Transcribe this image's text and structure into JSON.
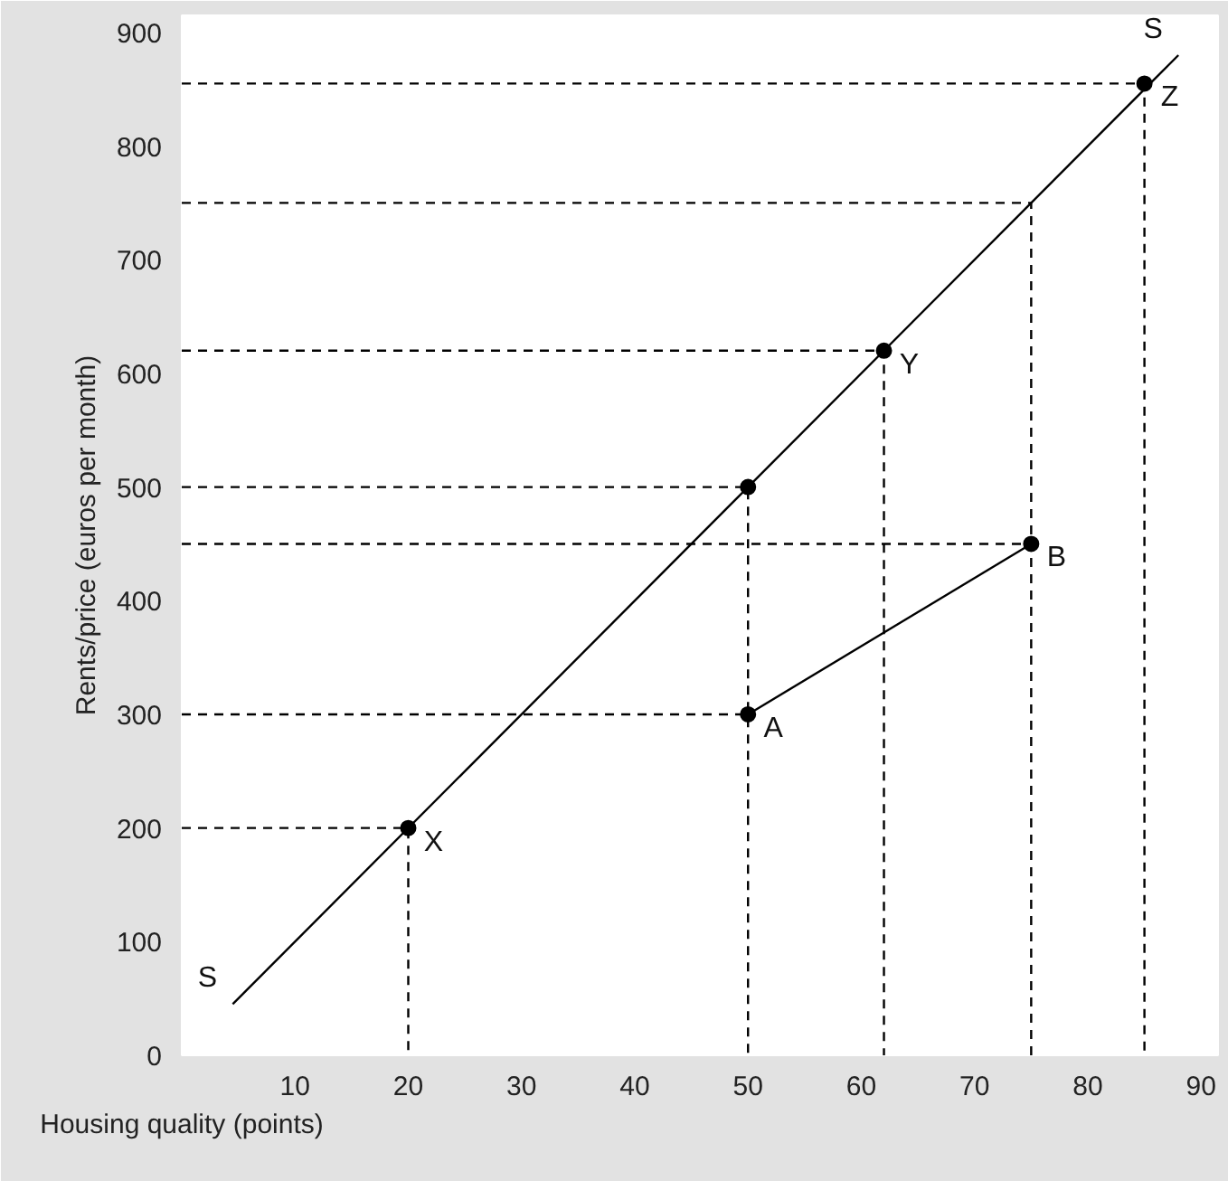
{
  "chart_data": {
    "type": "line",
    "xlabel": "Housing quality (points)",
    "ylabel": "Rents/price (euros per month)",
    "xlim": [
      0,
      91.5
    ],
    "ylim": [
      0,
      915
    ],
    "xticks": [
      10,
      20,
      30,
      40,
      50,
      60,
      70,
      80,
      90
    ],
    "yticks": [
      0,
      100,
      200,
      300,
      400,
      500,
      600,
      700,
      800,
      900
    ],
    "grid": false,
    "series": [
      {
        "color": "#000000",
        "line_style": "solid",
        "x": [
          4.5,
          88
        ],
        "values": [
          45,
          880
        ]
      },
      {
        "color": "#000000",
        "line_style": "solid",
        "x": [
          50,
          75
        ],
        "values": [
          300,
          450
        ]
      },
      {
        "color": "#000000",
        "line_style": "dashed",
        "x": [
          0,
          20,
          20
        ],
        "values": [
          200,
          200,
          0
        ]
      },
      {
        "color": "#000000",
        "line_style": "dashed",
        "x": [
          0,
          50
        ],
        "values": [
          300,
          300
        ]
      },
      {
        "color": "#000000",
        "line_style": "dashed",
        "x": [
          0,
          75
        ],
        "values": [
          450,
          450
        ]
      },
      {
        "color": "#000000",
        "line_style": "dashed",
        "x": [
          0,
          50,
          50
        ],
        "values": [
          500,
          500,
          0
        ]
      },
      {
        "color": "#000000",
        "line_style": "dashed",
        "x": [
          0,
          62,
          62
        ],
        "values": [
          620,
          620,
          0
        ]
      },
      {
        "color": "#000000",
        "line_style": "dashed",
        "x": [
          0,
          75,
          75
        ],
        "values": [
          750,
          750,
          0
        ]
      },
      {
        "color": "#000000",
        "line_style": "dashed",
        "x": [
          0,
          85,
          85
        ],
        "values": [
          855,
          855,
          0
        ]
      },
      {
        "type": "scatter",
        "color": "#000000",
        "marker": "circle",
        "x": [
          20,
          50,
          62,
          85,
          50,
          75
        ],
        "values": [
          200,
          500,
          620,
          855,
          300,
          450
        ]
      }
    ],
    "annotations": [
      {
        "text": "S",
        "x": 4.5,
        "y": 45
      },
      {
        "text": "S",
        "x": 88,
        "y": 880
      },
      {
        "text": "X",
        "x": 20,
        "y": 200
      },
      {
        "text": "Y",
        "x": 62,
        "y": 620
      },
      {
        "text": "Z",
        "x": 85,
        "y": 855
      },
      {
        "text": "A",
        "x": 50,
        "y": 300
      },
      {
        "text": "B",
        "x": 75,
        "y": 450
      }
    ]
  }
}
